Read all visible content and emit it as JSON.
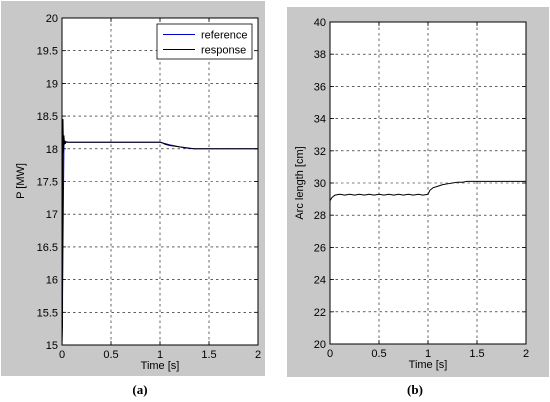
{
  "colors": {
    "panel_bg": "#c8c8c8",
    "reference": "#0000cc",
    "response": "#000000"
  },
  "chart_data": [
    {
      "type": "line",
      "caption": "(a)",
      "xlabel": "Time [s]",
      "ylabel": "P [MW]",
      "xlim": [
        0,
        2
      ],
      "ylim": [
        15,
        20
      ],
      "xticks": [
        0,
        0.5,
        1,
        1.5,
        2
      ],
      "xtick_labels": [
        "0",
        "0.5",
        "1",
        "1.5",
        "2"
      ],
      "yticks": [
        15,
        15.5,
        16,
        16.5,
        17,
        17.5,
        18,
        18.5,
        19,
        19.5,
        20
      ],
      "ytick_labels": [
        "15",
        "15.5",
        "16",
        "16.5",
        "17",
        "17.5",
        "18",
        "18.5",
        "19",
        "19.5",
        "20"
      ],
      "grid": true,
      "legend": "top-right",
      "series": [
        {
          "name": "reference",
          "color": "#0000cc",
          "x": [
            0,
            0.02,
            0.03,
            0.05,
            0.5,
            1.0,
            1.1,
            1.2,
            1.3,
            1.35,
            2.0
          ],
          "y": [
            15.0,
            18.1,
            18.1,
            18.1,
            18.1,
            18.1,
            18.06,
            18.03,
            18.005,
            18.0,
            18.0
          ]
        },
        {
          "name": "response",
          "color": "#000000",
          "x": [
            0,
            0.005,
            0.01,
            0.015,
            0.02,
            0.025,
            0.03,
            0.035,
            0.04,
            0.06,
            0.08,
            0.1,
            0.5,
            1.0,
            1.01,
            1.05,
            1.1,
            1.2,
            1.3,
            1.35,
            1.4,
            2.0
          ],
          "y": [
            15.0,
            15.3,
            18.45,
            17.95,
            18.2,
            18.07,
            18.12,
            18.08,
            18.11,
            18.1,
            18.1,
            18.1,
            18.1,
            18.1,
            18.1,
            18.07,
            18.05,
            18.03,
            18.01,
            18.0,
            18.0,
            18.0
          ]
        }
      ]
    },
    {
      "type": "line",
      "caption": "(b)",
      "xlabel": "Time [s]",
      "ylabel": "Arc length [cm]",
      "xlim": [
        0,
        2
      ],
      "ylim": [
        20,
        40
      ],
      "xticks": [
        0,
        0.5,
        1,
        1.5,
        2
      ],
      "xtick_labels": [
        "0",
        "0.5",
        "1",
        "1.5",
        "2"
      ],
      "yticks": [
        20,
        22,
        24,
        26,
        28,
        30,
        32,
        34,
        36,
        38,
        40
      ],
      "ytick_labels": [
        "20",
        "22",
        "24",
        "26",
        "28",
        "30",
        "32",
        "34",
        "36",
        "38",
        "40"
      ],
      "grid": true,
      "series": [
        {
          "color": "#000000",
          "x": [
            0,
            0.02,
            0.05,
            0.1,
            0.15,
            0.2,
            0.25,
            0.3,
            0.35,
            0.4,
            0.45,
            0.5,
            0.55,
            0.6,
            0.65,
            0.7,
            0.75,
            0.8,
            0.85,
            0.9,
            0.95,
            1.0,
            1.02,
            1.05,
            1.1,
            1.15,
            1.2,
            1.25,
            1.3,
            1.35,
            1.4,
            1.45,
            1.5,
            1.6,
            1.7,
            1.8,
            1.9,
            2.0
          ],
          "y": [
            28.9,
            29.1,
            29.25,
            29.3,
            29.25,
            29.3,
            29.25,
            29.3,
            29.25,
            29.3,
            29.25,
            29.3,
            29.25,
            29.3,
            29.25,
            29.3,
            29.25,
            29.3,
            29.25,
            29.3,
            29.25,
            29.3,
            29.55,
            29.7,
            29.8,
            29.9,
            29.95,
            30.0,
            30.05,
            30.05,
            30.1,
            30.1,
            30.1,
            30.1,
            30.1,
            30.1,
            30.1,
            30.1
          ]
        }
      ]
    }
  ]
}
